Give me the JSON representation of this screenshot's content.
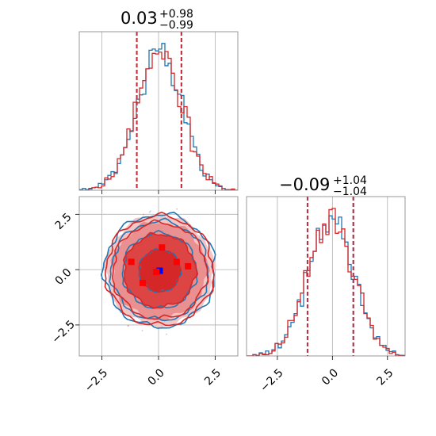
{
  "chart_data": [
    {
      "type": "histogram",
      "panel": "marginal-1",
      "title": {
        "median": "0.03",
        "plus": "+0.98",
        "minus": "−0.99"
      },
      "x_range": [
        -3.5,
        3.5
      ],
      "quantile_lines": [
        -0.96,
        1.01
      ],
      "x_ticks": [
        -2.5,
        0.0,
        2.5
      ],
      "grid": true,
      "series": [
        {
          "color": "#1f77b4",
          "mean": 0.03,
          "sd": 0.99
        },
        {
          "color": "#d62728",
          "mean": 0.03,
          "sd": 0.98
        }
      ]
    },
    {
      "type": "histogram",
      "panel": "marginal-2",
      "title": {
        "median": "−0.09",
        "plus": "+1.04",
        "minus": "−1.04"
      },
      "x_range": [
        -3.9,
        3.3
      ],
      "quantile_lines": [
        -1.13,
        0.95
      ],
      "x_ticks": [
        -2.5,
        0.0,
        2.5
      ],
      "x_tick_labels": [
        "−2.5",
        "0.0",
        "2.5"
      ],
      "grid": true,
      "series": [
        {
          "color": "#1f77b4",
          "mean": -0.09,
          "sd": 1.04
        },
        {
          "color": "#d62728",
          "mean": -0.09,
          "sd": 1.03
        }
      ]
    },
    {
      "type": "contour",
      "panel": "joint",
      "x_range": [
        -3.5,
        3.5
      ],
      "y_range": [
        -3.9,
        3.3
      ],
      "x_ticks": [
        -2.5,
        0.0,
        2.5
      ],
      "x_tick_labels": [
        "−2.5",
        "0.0",
        "2.5"
      ],
      "y_ticks": [
        -2.5,
        0.0,
        2.5
      ],
      "y_tick_labels": [
        "−2.5",
        "0.0",
        "2.5"
      ],
      "grid": true,
      "contour_levels_sigma": [
        0.9,
        1.6,
        2.1,
        2.4
      ],
      "filled_color": "#d62728",
      "line_colors": [
        "#1f77b4",
        "#d62728"
      ],
      "points": [
        {
          "x": 0.05,
          "y": -0.05,
          "color": "#0000ff"
        },
        {
          "x": 0.15,
          "y": 1.0,
          "color": "#ff0000"
        },
        {
          "x": -1.2,
          "y": 0.35,
          "color": "#ff0000"
        },
        {
          "x": 0.8,
          "y": 0.35,
          "color": "#ff0000"
        },
        {
          "x": 1.3,
          "y": 0.15,
          "color": "#ff0000"
        },
        {
          "x": -0.7,
          "y": -0.6,
          "color": "#ff0000"
        },
        {
          "x": -0.1,
          "y": -0.1,
          "color": "#ff0000"
        }
      ]
    }
  ]
}
